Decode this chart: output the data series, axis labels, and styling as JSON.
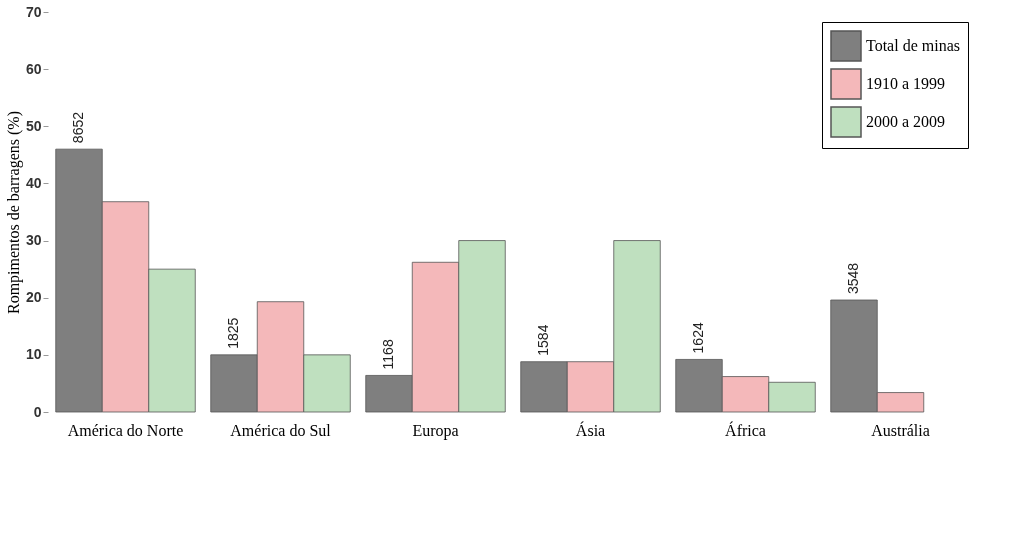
{
  "chart_data": {
    "type": "bar",
    "ylabel": "Rompimentos de barragens (%)",
    "categories": [
      "América do Norte",
      "América do Sul",
      "Europa",
      "Ásia",
      "África",
      "Austrália"
    ],
    "series": [
      {
        "name": "Total de minas",
        "color": "#7f7f7f",
        "values": [
          46,
          10,
          6.4,
          8.8,
          9.2,
          19.6
        ]
      },
      {
        "name": "1910 a 1999",
        "color": "#f4b8ba",
        "values": [
          36.8,
          19.3,
          26.2,
          8.8,
          6.2,
          3.4
        ]
      },
      {
        "name": "2000 a 2009",
        "color": "#bfe0bf",
        "values": [
          25,
          10,
          30,
          30,
          5.2,
          null
        ]
      }
    ],
    "annotations": [
      "8652",
      "1825",
      "1168",
      "1584",
      "1624",
      "3548"
    ],
    "ylim": [
      0,
      70
    ],
    "yticks": [
      0,
      10,
      20,
      30,
      40,
      50,
      60,
      70
    ],
    "grid": false,
    "legend": "top right"
  }
}
